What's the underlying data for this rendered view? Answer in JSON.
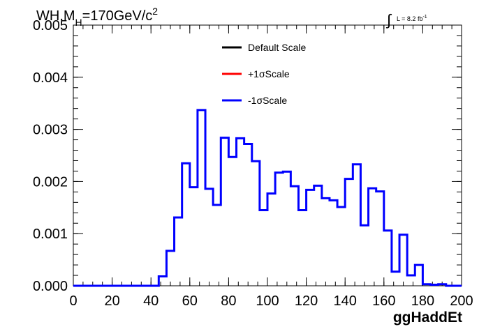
{
  "chart_data": {
    "type": "line",
    "title_main": "WH,M",
    "title_sub": "H",
    "title_rest": "=170GeV/c",
    "title_sup": "2",
    "lumi_label": "L = 8.2 fb",
    "lumi_sup": "-1",
    "xlabel": "ggHaddEt",
    "ylabel": "",
    "xlim": [
      0,
      200
    ],
    "ylim": [
      0,
      0.005
    ],
    "x_ticks": [
      "0",
      "20",
      "40",
      "60",
      "80",
      "100",
      "120",
      "140",
      "160",
      "180",
      "200"
    ],
    "y_ticks": [
      "0.000",
      "0.001",
      "0.002",
      "0.003",
      "0.004",
      "0.005"
    ],
    "legend": [
      {
        "label": "Default Scale",
        "color": "#000000"
      },
      {
        "label": "+1σScale",
        "color": "#ff0000"
      },
      {
        "label": "-1σScale",
        "color": "#0000ff"
      }
    ],
    "bin_width": 4,
    "bin_edges_start": 0,
    "series": [
      {
        "name": "-1σScale",
        "color": "#0000ff",
        "values": [
          0,
          0,
          0,
          0,
          0,
          0,
          0,
          0,
          0,
          0,
          0,
          0.00018,
          0.00067,
          0.00131,
          0.00235,
          0.00189,
          0.00337,
          0.00186,
          0.00155,
          0.00284,
          0.00247,
          0.00283,
          0.00272,
          0.00239,
          0.00145,
          0.00177,
          0.00217,
          0.00219,
          0.00191,
          0.00145,
          0.00184,
          0.00192,
          0.00168,
          0.00164,
          0.00151,
          0.00205,
          0.00233,
          0.00116,
          0.00187,
          0.00181,
          0.00106,
          0.00027,
          0.00098,
          0.0002,
          0.0004,
          3e-05,
          2e-05,
          3e-05,
          0,
          0
        ]
      }
    ]
  }
}
